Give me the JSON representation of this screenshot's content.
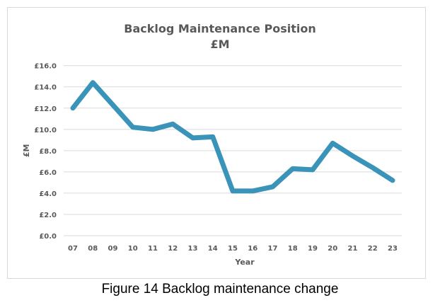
{
  "chart_data": {
    "type": "line",
    "title": "Backlog Maintenance Position",
    "subtitle": "£M",
    "xlabel": "Year",
    "ylabel": "£M",
    "categories": [
      "07",
      "08",
      "09",
      "10",
      "11",
      "12",
      "13",
      "14",
      "15",
      "16",
      "17",
      "18",
      "19",
      "20",
      "21",
      "22",
      "23"
    ],
    "values": [
      12.0,
      14.4,
      12.3,
      10.2,
      10.0,
      10.5,
      9.2,
      9.3,
      4.2,
      4.2,
      4.6,
      6.3,
      6.2,
      8.7,
      7.5,
      6.4,
      5.2
    ],
    "ylim": [
      0,
      16
    ],
    "yticks": [
      "£0.0",
      "£2.0",
      "£4.0",
      "£6.0",
      "£8.0",
      "£10.0",
      "£12.0",
      "£14.0",
      "£16.0"
    ],
    "grid": true,
    "legend": "none",
    "line_color": "#3A93B8"
  },
  "caption": "Figure 14 Backlog maintenance change"
}
